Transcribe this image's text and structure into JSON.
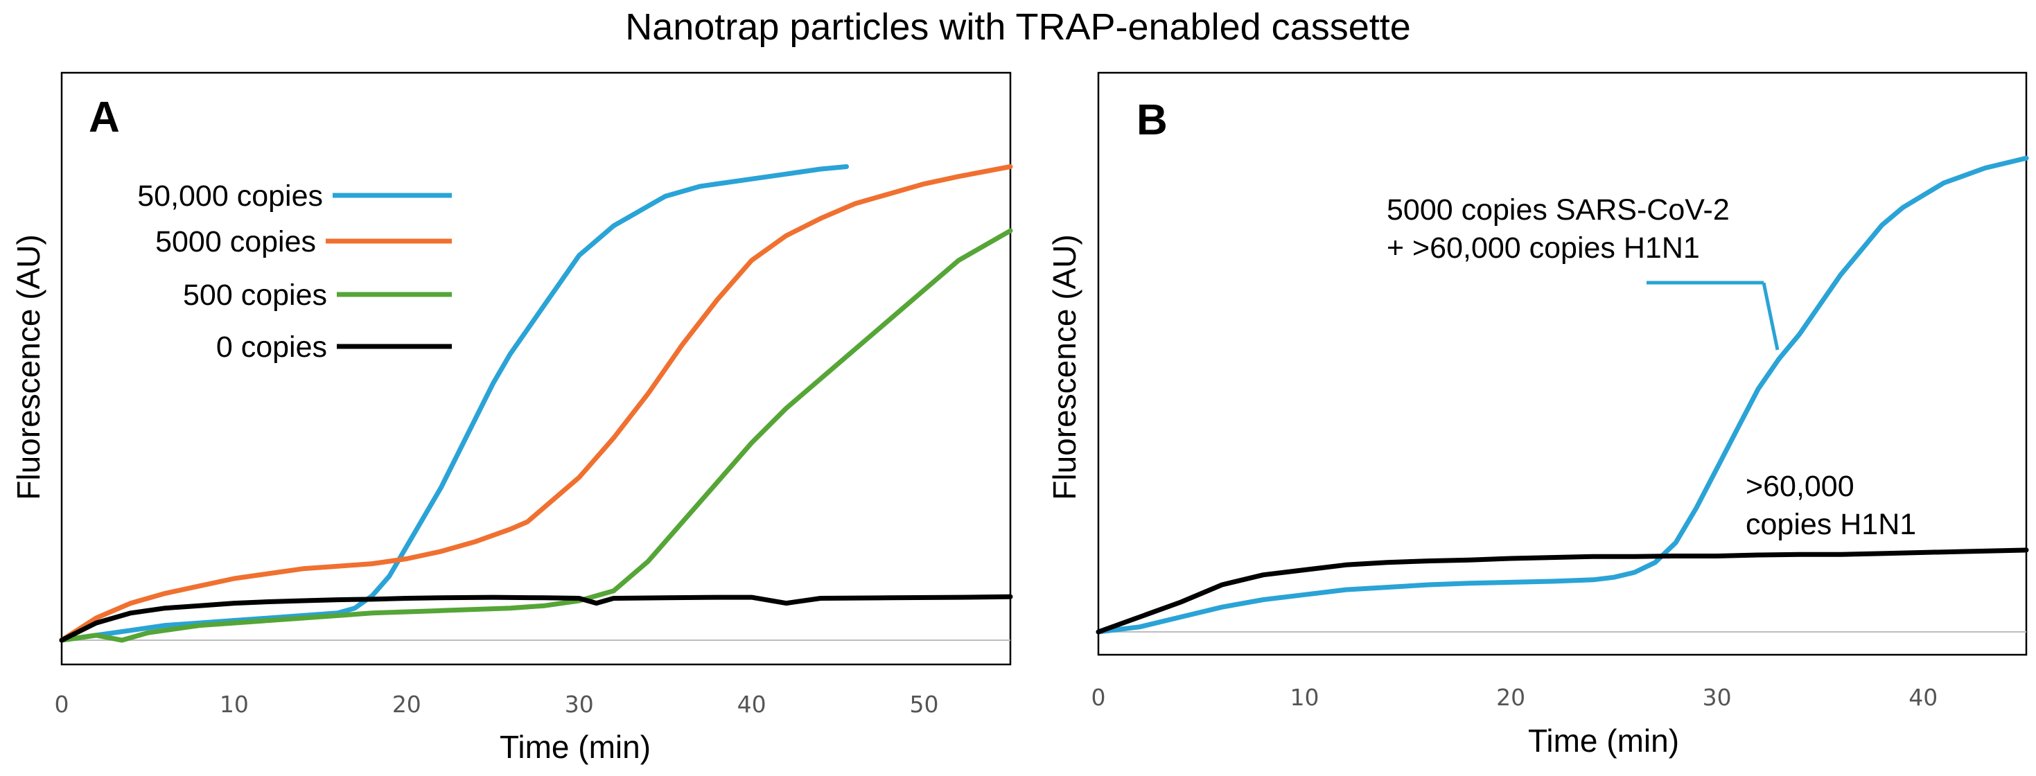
{
  "figure_title": "Nanotrap particles with TRAP-enabled cassette",
  "chart_data": [
    {
      "type": "line",
      "panel": "A",
      "xlabel": "Time (min)",
      "ylabel": "Fluorescence (AU)",
      "xlim": [
        0,
        55
      ],
      "ylim": [
        0,
        100
      ],
      "xticks": [
        "0",
        "10",
        "20",
        "30",
        "40",
        "50"
      ],
      "series": [
        {
          "name": "50,000 copies",
          "color": "#2aa3d6",
          "x": [
            0,
            2,
            4,
            6,
            8,
            10,
            12,
            14,
            16,
            17,
            18,
            19,
            20,
            21,
            22,
            23,
            24,
            25,
            26,
            27,
            28,
            29,
            30,
            31,
            32,
            33,
            34,
            35,
            36,
            37,
            38,
            40,
            42,
            44,
            45.5
          ],
          "y": [
            0,
            1,
            2,
            3,
            3.5,
            4,
            4.5,
            5,
            5.5,
            6.5,
            9,
            13,
            19,
            25,
            31,
            38,
            45,
            52,
            58,
            63,
            68,
            73,
            78,
            81,
            84,
            86,
            88,
            90,
            91,
            92,
            92.5,
            93.5,
            94.5,
            95.5,
            96
          ]
        },
        {
          "name": "5000 copies",
          "color": "#f07030",
          "x": [
            0,
            2,
            4,
            6,
            8,
            10,
            12,
            14,
            16,
            18,
            20,
            22,
            24,
            26,
            27,
            28,
            30,
            32,
            34,
            36,
            38,
            40,
            42,
            44,
            46,
            48,
            50,
            52,
            55
          ],
          "y": [
            0,
            4.5,
            7.5,
            9.5,
            11,
            12.5,
            13.5,
            14.5,
            15,
            15.5,
            16.5,
            18,
            20,
            22.5,
            24,
            27,
            33,
            41,
            50,
            60,
            69,
            77,
            82,
            85.5,
            88.5,
            90.5,
            92.5,
            94,
            96
          ]
        },
        {
          "name": "500 copies",
          "color": "#55a537",
          "x": [
            0,
            2,
            3.5,
            5,
            8,
            10,
            14,
            18,
            22,
            26,
            28,
            30,
            32,
            34,
            36,
            38,
            40,
            42,
            44,
            46,
            48,
            50,
            52,
            55
          ],
          "y": [
            0,
            1,
            0,
            1.5,
            3,
            3.5,
            4.5,
            5.5,
            6,
            6.5,
            7,
            8,
            10,
            16,
            24,
            32,
            40,
            47,
            53,
            59,
            65,
            71,
            77,
            83
          ]
        },
        {
          "name": "0 copies",
          "color": "#000000",
          "x": [
            0,
            2,
            4,
            6,
            8,
            10,
            12,
            14,
            16,
            18,
            20,
            22,
            25,
            28,
            30,
            31,
            32,
            35,
            38,
            40,
            42,
            44,
            48,
            52,
            55
          ],
          "y": [
            0,
            3.5,
            5.5,
            6.5,
            7,
            7.5,
            7.8,
            8,
            8.2,
            8.3,
            8.5,
            8.6,
            8.7,
            8.6,
            8.5,
            7.5,
            8.5,
            8.6,
            8.7,
            8.7,
            7.5,
            8.5,
            8.6,
            8.7,
            8.8
          ]
        }
      ]
    },
    {
      "type": "line",
      "panel": "B",
      "xlabel": "Time (min)",
      "ylabel": "Fluorescence (AU)",
      "xlim": [
        0,
        45
      ],
      "ylim": [
        0,
        100
      ],
      "xticks": [
        "0",
        "10",
        "20",
        "30",
        "40"
      ],
      "annotations": [
        {
          "lines": [
            "5000 copies SARS-CoV-2",
            "+ >60,000 copies H1N1"
          ],
          "color": "#2aa3d6"
        },
        {
          "lines": [
            ">60,000",
            "copies H1N1"
          ],
          "color": "#000000"
        }
      ],
      "series": [
        {
          "name": "5000 copies SARS-CoV-2 + >60,000 copies H1N1",
          "color": "#2aa3d6",
          "x": [
            0,
            2,
            4,
            6,
            8,
            10,
            12,
            14,
            16,
            18,
            20,
            22,
            24,
            25,
            26,
            27,
            28,
            29,
            30,
            31,
            32,
            33,
            34,
            35,
            36,
            37,
            38,
            39,
            40,
            41,
            42,
            43,
            44,
            45
          ],
          "y": [
            0,
            1,
            3,
            5,
            6.5,
            7.5,
            8.5,
            9,
            9.5,
            9.8,
            10,
            10.2,
            10.5,
            11,
            12,
            14,
            18,
            25,
            33,
            41,
            49,
            55,
            60,
            66,
            72,
            77,
            82,
            85.5,
            88,
            90.5,
            92,
            93.5,
            94.5,
            95.5
          ]
        },
        {
          "name": ">60,000 copies H1N1",
          "color": "#000000",
          "x": [
            0,
            2,
            4,
            6,
            8,
            10,
            12,
            14,
            16,
            18,
            20,
            22,
            24,
            26,
            28,
            30,
            32,
            34,
            36,
            38,
            40,
            42,
            44,
            45
          ],
          "y": [
            0,
            3,
            6,
            9.5,
            11.5,
            12.5,
            13.5,
            14,
            14.3,
            14.5,
            14.8,
            15,
            15.2,
            15.2,
            15.3,
            15.3,
            15.5,
            15.6,
            15.6,
            15.8,
            16,
            16.2,
            16.4,
            16.5
          ]
        }
      ]
    }
  ]
}
